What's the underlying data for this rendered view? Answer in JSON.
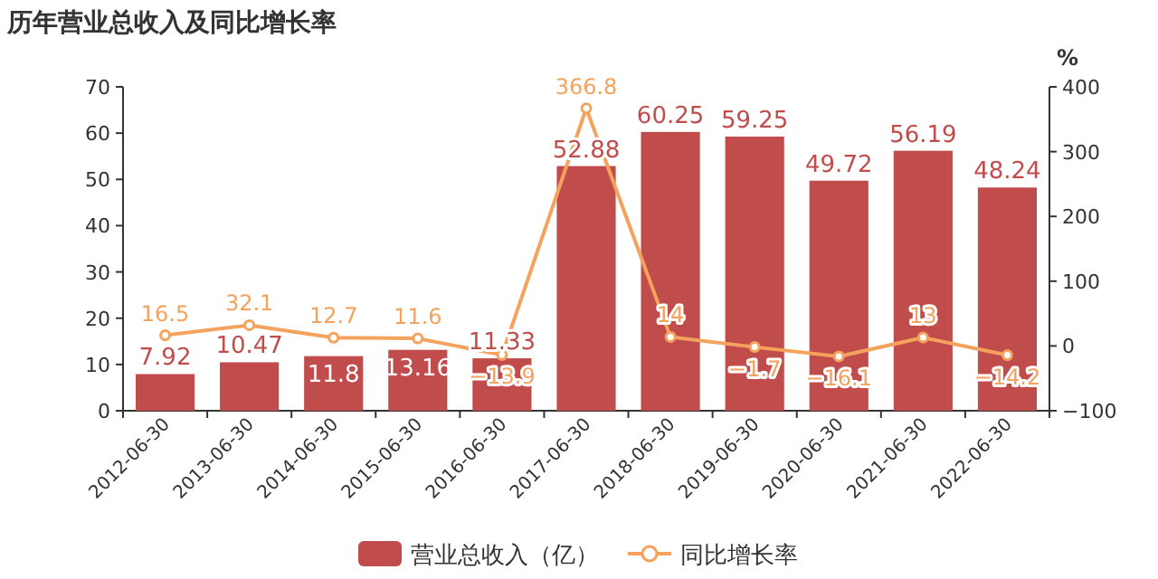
{
  "chart_data": {
    "type": "bar",
    "title": "历年营业总收入及同比增长率",
    "categories": [
      "2012-06-30",
      "2013-06-30",
      "2014-06-30",
      "2015-06-30",
      "2016-06-30",
      "2017-06-30",
      "2018-06-30",
      "2019-06-30",
      "2020-06-30",
      "2021-06-30",
      "2022-06-30"
    ],
    "series": [
      {
        "name": "营业总收入（亿）",
        "color": "#c14c4c",
        "values": [
          7.92,
          10.47,
          11.8,
          13.16,
          11.33,
          52.88,
          60.25,
          59.25,
          49.72,
          56.19,
          48.24
        ]
      },
      {
        "name": "同比增长率",
        "type": "line",
        "axis": "y2",
        "color": "#f5a25c",
        "marker": "circle",
        "values": [
          16.5,
          32.1,
          12.7,
          11.6,
          -13.9,
          366.8,
          14,
          -1.7,
          -16.1,
          13,
          -14.2
        ]
      }
    ],
    "ylim": [
      0,
      70
    ],
    "yticks": [
      0,
      10,
      20,
      30,
      40,
      50,
      60,
      70
    ],
    "y2lim": [
      -100,
      400
    ],
    "y2ticks": [
      -100,
      0,
      100,
      200,
      300,
      400
    ],
    "y2label": "%",
    "data_labels": true,
    "legend": "bottom"
  }
}
